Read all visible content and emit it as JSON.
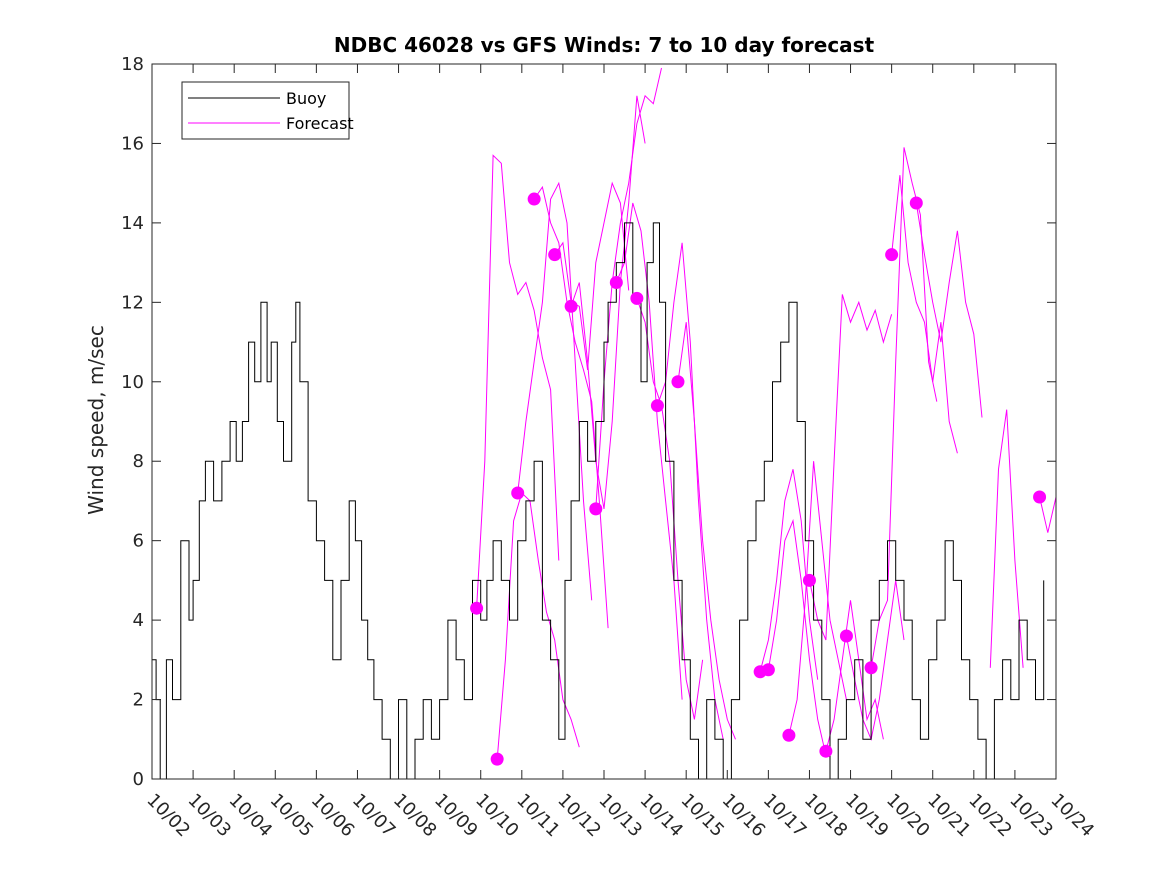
{
  "chart_data": {
    "type": "line",
    "title": "NDBC 46028 vs GFS Winds: 7 to 10 day forecast",
    "xlabel": "",
    "ylabel": "Wind speed, m/sec",
    "xlim": [
      0,
      22
    ],
    "ylim": [
      0,
      18
    ],
    "yticks": [
      0,
      2,
      4,
      6,
      8,
      10,
      12,
      14,
      16,
      18
    ],
    "ytick_labels": [
      "0",
      "2",
      "4",
      "6",
      "8",
      "10",
      "12",
      "14",
      "16",
      "18"
    ],
    "x_tick_labels": [
      "10/02",
      "10/03",
      "10/04",
      "10/05",
      "10/06",
      "10/07",
      "10/08",
      "10/09",
      "10/10",
      "10/11",
      "10/12",
      "10/13",
      "10/14",
      "10/15",
      "10/16",
      "10/17",
      "10/18",
      "10/19",
      "10/20",
      "10/21",
      "10/22",
      "10/23",
      "10/24"
    ],
    "legend_position": "top-left",
    "colors": {
      "buoy": "#000000",
      "forecast": "#ff00ff"
    },
    "series": [
      {
        "name": "Buoy",
        "x": [
          0,
          0.1,
          0.2,
          0.35,
          0.5,
          0.7,
          0.9,
          1.0,
          1.15,
          1.3,
          1.5,
          1.7,
          1.9,
          2.05,
          2.2,
          2.35,
          2.5,
          2.65,
          2.8,
          2.9,
          3.05,
          3.2,
          3.4,
          3.5,
          3.6,
          3.8,
          4.0,
          4.2,
          4.4,
          4.6,
          4.8,
          4.95,
          5.1,
          5.25,
          5.4,
          5.6,
          5.8,
          6.0,
          6.2,
          6.4,
          6.6,
          6.8,
          7.0,
          7.2,
          7.4,
          7.6,
          7.8,
          8.0,
          8.15,
          8.3,
          8.5,
          8.7,
          8.9,
          9.1,
          9.3,
          9.5,
          9.7,
          9.9,
          10.05,
          10.2,
          10.4,
          10.6,
          10.8,
          11.0,
          11.1,
          11.3,
          11.5,
          11.7,
          11.9,
          12.05,
          12.2,
          12.35,
          12.5,
          12.7,
          12.9,
          13.1,
          13.3,
          13.5,
          13.7,
          13.9,
          14.1,
          14.3,
          14.5,
          14.7,
          14.9,
          15.1,
          15.3,
          15.5,
          15.7,
          15.9,
          16.1,
          16.3,
          16.5,
          16.7,
          16.9,
          17.1,
          17.3,
          17.5,
          17.7,
          17.9,
          18.1,
          18.3,
          18.5,
          18.7,
          18.9,
          19.1,
          19.3,
          19.5,
          19.7,
          19.9,
          20.1,
          20.3,
          20.5,
          20.7,
          20.9,
          21.1,
          21.3,
          21.5,
          21.7
        ],
        "values": [
          3,
          2,
          0,
          3,
          2,
          6,
          4,
          5,
          7,
          8,
          7,
          8,
          9,
          8,
          9,
          11,
          10,
          12,
          10,
          11,
          9,
          8,
          11,
          12,
          10,
          7,
          6,
          5,
          3,
          5,
          7,
          6,
          4,
          3,
          2,
          1,
          0,
          2,
          0,
          1,
          2,
          1,
          2,
          4,
          3,
          2,
          5,
          4,
          5,
          6,
          5,
          4,
          6,
          7,
          8,
          4,
          3,
          1,
          5,
          7,
          9,
          8,
          9,
          11,
          12,
          13,
          14,
          12,
          10,
          13,
          14,
          12,
          8,
          5,
          3,
          1,
          0,
          2,
          1,
          0,
          2,
          4,
          6,
          7,
          8,
          10,
          11,
          12,
          9,
          6,
          4,
          2,
          0,
          1,
          2,
          3,
          1,
          4,
          5,
          6,
          5,
          4,
          2,
          1,
          3,
          4,
          6,
          5,
          3,
          2,
          1,
          0,
          2,
          3,
          2,
          4,
          3,
          2,
          5
        ]
      }
    ],
    "forecast_runs": [
      {
        "x": [
          7.9,
          8.1,
          8.3,
          8.5,
          8.7,
          8.9,
          9.1,
          9.3,
          9.5,
          9.7,
          9.9
        ],
        "values": [
          4.3,
          8.0,
          15.7,
          15.5,
          13.0,
          12.2,
          12.5,
          11.8,
          10.6,
          9.8,
          5.5
        ]
      },
      {
        "x": [
          8.4,
          8.6,
          8.8,
          9.0,
          9.2,
          9.4,
          9.6,
          9.8,
          10.0,
          10.2,
          10.4
        ],
        "values": [
          0.5,
          3.0,
          6.5,
          7.2,
          7.0,
          5.5,
          4.2,
          3.5,
          2.0,
          1.5,
          0.8
        ]
      },
      {
        "x": [
          8.9,
          9.1,
          9.3,
          9.5,
          9.7,
          9.9,
          10.1,
          10.3,
          10.5,
          10.7
        ],
        "values": [
          7.2,
          9.0,
          10.5,
          12.0,
          14.6,
          15.0,
          14.0,
          10.5,
          7.0,
          4.5
        ]
      },
      {
        "x": [
          9.3,
          9.5,
          9.7,
          9.9,
          10.1,
          10.3,
          10.5,
          10.7,
          10.9,
          11.1
        ],
        "values": [
          14.6,
          14.9,
          14.0,
          13.5,
          12.0,
          11.0,
          10.3,
          9.5,
          6.8,
          3.8
        ]
      },
      {
        "x": [
          9.8,
          10.0,
          10.2,
          10.4,
          10.6,
          10.8,
          11.0,
          11.2,
          11.4,
          11.6
        ],
        "values": [
          13.2,
          13.5,
          12.0,
          11.9,
          10.3,
          13.0,
          14.0,
          15.0,
          14.5,
          12.3
        ]
      },
      {
        "x": [
          10.2,
          10.4,
          10.6,
          10.8,
          11.0,
          11.2,
          11.4,
          11.6,
          11.8,
          12.0
        ],
        "values": [
          11.9,
          12.5,
          10.5,
          8.0,
          6.8,
          9.0,
          12.5,
          14.5,
          17.2,
          16.0
        ]
      },
      {
        "x": [
          10.8,
          11.0,
          11.2,
          11.4,
          11.6,
          11.8,
          12.0,
          12.2,
          12.4
        ],
        "values": [
          6.8,
          10.0,
          12.5,
          14.0,
          15.0,
          16.5,
          17.2,
          17.0,
          17.9
        ]
      },
      {
        "x": [
          11.3,
          11.5,
          11.7,
          11.9,
          12.1,
          12.3,
          12.5,
          12.7,
          12.9
        ],
        "values": [
          12.5,
          13.0,
          14.5,
          13.8,
          12.0,
          9.0,
          7.0,
          5.0,
          2.0
        ]
      },
      {
        "x": [
          11.8,
          12.0,
          12.2,
          12.4,
          12.6,
          12.8,
          13.0,
          13.2,
          13.4
        ],
        "values": [
          12.1,
          11.5,
          10.0,
          9.4,
          8.0,
          5.0,
          2.5,
          1.5,
          3.0
        ]
      },
      {
        "x": [
          12.3,
          12.5,
          12.7,
          12.9,
          13.1,
          13.3,
          13.5,
          13.7,
          13.9
        ],
        "values": [
          9.4,
          10.0,
          12.0,
          13.5,
          11.0,
          7.0,
          4.0,
          2.0,
          1.0
        ]
      },
      {
        "x": [
          12.8,
          13.0,
          13.2,
          13.4,
          13.6,
          13.8,
          14.0,
          14.2
        ],
        "values": [
          10.0,
          11.5,
          9.0,
          6.0,
          4.0,
          2.5,
          1.5,
          1.0
        ]
      },
      {
        "x": [
          14.8,
          15.0,
          15.2,
          15.4,
          15.6,
          15.8,
          16.0,
          16.2
        ],
        "values": [
          2.7,
          3.5,
          5.0,
          7.0,
          7.8,
          6.5,
          4.0,
          2.5
        ]
      },
      {
        "x": [
          15.0,
          15.2,
          15.4,
          15.6,
          15.8,
          16.0,
          16.2,
          16.4
        ],
        "values": [
          2.75,
          4.0,
          6.0,
          6.5,
          5.0,
          3.0,
          1.5,
          0.6
        ]
      },
      {
        "x": [
          15.5,
          15.7,
          15.9,
          16.1,
          16.3,
          16.5,
          16.7,
          16.9
        ],
        "values": [
          1.1,
          2.0,
          4.5,
          8.0,
          6.0,
          4.0,
          3.0,
          2.0
        ]
      },
      {
        "x": [
          16.0,
          16.2,
          16.4,
          16.6,
          16.8,
          17.0,
          17.2,
          17.4,
          17.6,
          17.8,
          18.0
        ],
        "values": [
          5.0,
          4.0,
          3.5,
          8.0,
          12.2,
          11.5,
          12.0,
          11.3,
          11.8,
          11.0,
          11.7
        ]
      },
      {
        "x": [
          16.4,
          16.6,
          16.8,
          17.0,
          17.2,
          17.4,
          17.6,
          17.8
        ],
        "values": [
          0.7,
          1.5,
          3.0,
          4.5,
          3.0,
          1.5,
          2.0,
          1.0
        ]
      },
      {
        "x": [
          16.9,
          17.1,
          17.3,
          17.5,
          17.7,
          17.9,
          18.1,
          18.3
        ],
        "values": [
          3.6,
          2.5,
          1.5,
          1.0,
          2.0,
          3.5,
          5.0,
          3.5
        ]
      },
      {
        "x": [
          17.5,
          17.7,
          17.9,
          18.1,
          18.3,
          18.5,
          18.7,
          18.9,
          19.1
        ],
        "values": [
          2.8,
          4.0,
          4.5,
          10.5,
          15.9,
          15.0,
          14.2,
          10.5,
          9.5
        ]
      },
      {
        "x": [
          18.0,
          18.2,
          18.4,
          18.6,
          18.8,
          19.0,
          19.2,
          19.4,
          19.6
        ],
        "values": [
          13.2,
          15.2,
          13.0,
          12.0,
          11.5,
          10.0,
          11.5,
          9.0,
          8.2
        ]
      },
      {
        "x": [
          18.6,
          18.8,
          19.0,
          19.2,
          19.4,
          19.6,
          19.8,
          20.0,
          20.2
        ],
        "values": [
          14.5,
          13.2,
          12.0,
          11.0,
          12.5,
          13.8,
          12.0,
          11.2,
          9.1
        ]
      },
      {
        "x": [
          20.4,
          20.6,
          20.8,
          21.0,
          21.2
        ],
        "values": [
          2.8,
          7.8,
          9.3,
          5.5,
          2.8
        ]
      },
      {
        "x": [
          21.6,
          21.8,
          22.0
        ],
        "values": [
          7.1,
          6.2,
          7.1
        ]
      }
    ],
    "markers": {
      "x": [
        7.9,
        8.4,
        8.9,
        9.3,
        9.8,
        10.2,
        10.8,
        11.3,
        11.8,
        12.3,
        12.8,
        14.8,
        15.0,
        15.5,
        16.0,
        16.4,
        16.9,
        17.5,
        18.0,
        18.6,
        21.6
      ],
      "values": [
        4.3,
        0.5,
        7.2,
        14.6,
        13.2,
        11.9,
        6.8,
        12.5,
        12.1,
        9.4,
        10.0,
        2.7,
        2.75,
        1.1,
        5.0,
        0.7,
        3.6,
        2.8,
        13.2,
        14.5,
        7.1
      ]
    }
  },
  "legend": {
    "items": [
      {
        "label": "Buoy",
        "color": "#000000"
      },
      {
        "label": "Forecast",
        "color": "#ff00ff"
      }
    ]
  }
}
